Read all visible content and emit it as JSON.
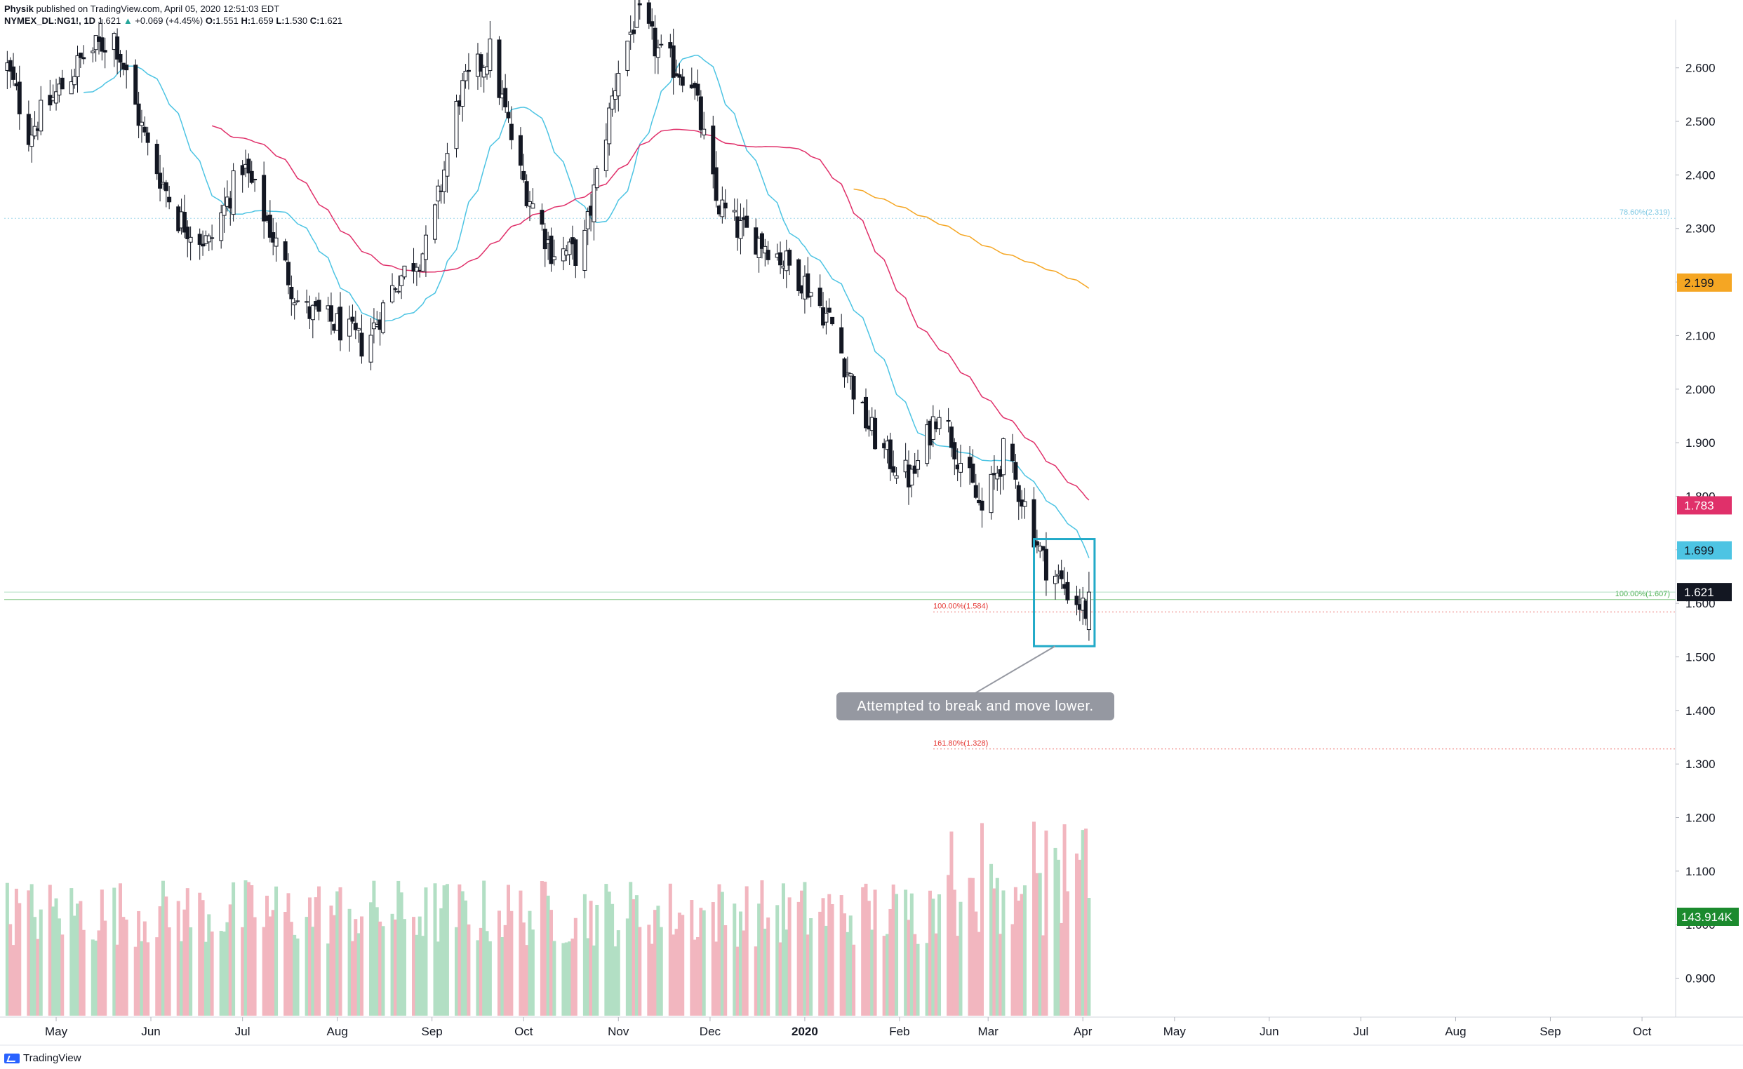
{
  "header": {
    "author": "Physik",
    "published": "published on TradingView.com, April 05, 2020 12:51:03 EDT",
    "symbol": "NYMEX_DL:NG1!, 1D",
    "last": "1.621",
    "change": "+0.069 (+4.45%)",
    "ohlc": {
      "O": "1.551",
      "H": "1.659",
      "L": "1.530",
      "C": "1.621"
    }
  },
  "footer": {
    "brand": "TradingView"
  },
  "colors": {
    "ma_fast": "#4dc4e3",
    "ma_mid": "#e0306a",
    "ma_slow": "#f5a623",
    "candle": "#131722",
    "vol_up": "#b2dfc4",
    "vol_down": "#f2b6bf",
    "fib_green": "#4caf50",
    "fib_red": "#e53935",
    "fib_blue": "#7ec8e3",
    "box": "#22aac8"
  },
  "chart_data": {
    "type": "candlestick",
    "y_axis": {
      "ylim": [
        0.83,
        2.69
      ],
      "ticks": [
        "2.600",
        "2.500",
        "2.400",
        "2.300",
        "2.200",
        "2.100",
        "2.000",
        "1.900",
        "1.800",
        "1.700",
        "1.600",
        "1.500",
        "1.400",
        "1.300",
        "1.200",
        "1.100",
        "1.000",
        "0.900"
      ],
      "tick_values": [
        2.6,
        2.5,
        2.4,
        2.3,
        2.2,
        2.1,
        2.0,
        1.9,
        1.8,
        1.7,
        1.6,
        1.5,
        1.4,
        1.3,
        1.2,
        1.1,
        1.0,
        0.9
      ]
    },
    "x_axis": {
      "labels": [
        {
          "text": "May",
          "date": "2019-05-01",
          "bold": false
        },
        {
          "text": "Jun",
          "date": "2019-06-01",
          "bold": false
        },
        {
          "text": "Jul",
          "date": "2019-07-01",
          "bold": false
        },
        {
          "text": "Aug",
          "date": "2019-08-01",
          "bold": false
        },
        {
          "text": "Sep",
          "date": "2019-09-01",
          "bold": false
        },
        {
          "text": "Oct",
          "date": "2019-10-01",
          "bold": false
        },
        {
          "text": "Nov",
          "date": "2019-11-01",
          "bold": false
        },
        {
          "text": "Dec",
          "date": "2019-12-01",
          "bold": false
        },
        {
          "text": "2020",
          "date": "2020-01-01",
          "bold": true
        },
        {
          "text": "Feb",
          "date": "2020-02-01",
          "bold": false
        },
        {
          "text": "Mar",
          "date": "2020-03-01",
          "bold": false
        },
        {
          "text": "Apr",
          "date": "2020-04-01",
          "bold": false
        },
        {
          "text": "May",
          "date": "2020-05-01",
          "bold": false
        },
        {
          "text": "Jun",
          "date": "2020-06-01",
          "bold": false
        },
        {
          "text": "Jul",
          "date": "2020-07-01",
          "bold": false
        },
        {
          "text": "Aug",
          "date": "2020-08-01",
          "bold": false
        },
        {
          "text": "Sep",
          "date": "2020-09-01",
          "bold": false
        },
        {
          "text": "Oct",
          "date": "2020-10-01",
          "bold": false
        }
      ],
      "range": [
        "2019-04-14",
        "2020-10-12"
      ]
    },
    "price_path": {
      "dates": [
        "2019-04-15",
        "2019-04-22",
        "2019-05-01",
        "2019-05-10",
        "2019-05-20",
        "2019-05-31",
        "2019-06-10",
        "2019-06-20",
        "2019-07-01",
        "2019-07-10",
        "2019-07-20",
        "2019-08-01",
        "2019-08-10",
        "2019-08-20",
        "2019-08-31",
        "2019-09-10",
        "2019-09-20",
        "2019-09-30",
        "2019-10-10",
        "2019-10-20",
        "2019-11-01",
        "2019-11-07",
        "2019-11-15",
        "2019-11-25",
        "2019-12-03",
        "2019-12-10",
        "2019-12-20",
        "2020-01-01",
        "2020-01-10",
        "2020-01-20",
        "2020-01-27",
        "2020-02-05",
        "2020-02-14",
        "2020-02-20",
        "2020-02-28",
        "2020-03-06",
        "2020-03-12",
        "2020-03-19",
        "2020-03-26",
        "2020-04-03"
      ],
      "closes": [
        2.6,
        2.48,
        2.55,
        2.62,
        2.66,
        2.45,
        2.32,
        2.27,
        2.42,
        2.3,
        2.15,
        2.12,
        2.08,
        2.2,
        2.27,
        2.55,
        2.63,
        2.4,
        2.26,
        2.25,
        2.6,
        2.7,
        2.62,
        2.58,
        2.35,
        2.3,
        2.27,
        2.2,
        2.12,
        1.95,
        1.88,
        1.83,
        1.97,
        1.88,
        1.77,
        1.88,
        1.8,
        1.68,
        1.63,
        1.58
      ]
    },
    "volume": {
      "last": "143.914K",
      "note": "daily volume bars, green=up day, red=down day"
    },
    "moving_averages": [
      {
        "type": "fast",
        "last": "1.699",
        "color": "#4dc4e3"
      },
      {
        "type": "medium",
        "last": "1.783",
        "color": "#e0306a"
      },
      {
        "type": "slow",
        "last": "2.199",
        "color": "#f5a623"
      }
    ],
    "last_price": "1.621",
    "fib_levels": [
      {
        "text": "78.60%(2.319)",
        "value": 2.319,
        "color": "#7ec8e3"
      },
      {
        "text": "100.00%(1.607)",
        "value": 1.607,
        "color": "#4caf50"
      },
      {
        "text": "100.00%(1.584)",
        "value": 1.584,
        "color": "#e53935"
      },
      {
        "text": "161.80%(1.328)",
        "value": 1.328,
        "color": "#e53935"
      }
    ],
    "annotations": [
      {
        "text": "Attempted to break and move lower.",
        "box_price_range": [
          1.52,
          1.72
        ],
        "box_dates": [
          "2020-03-16",
          "2020-04-03"
        ]
      }
    ]
  }
}
